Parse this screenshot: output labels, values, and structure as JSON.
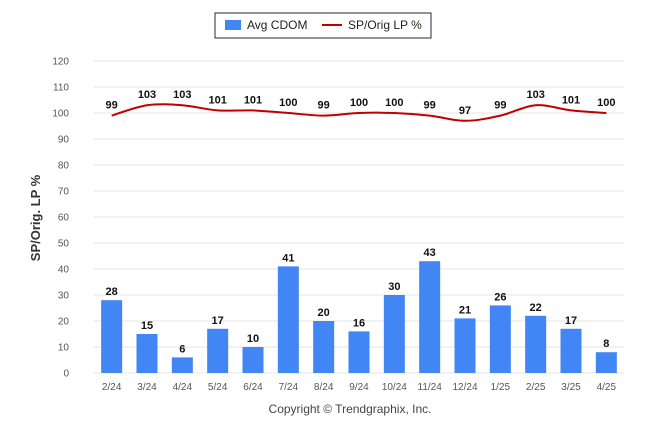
{
  "chart_data": {
    "type": "bar",
    "categories": [
      "2/24",
      "3/24",
      "4/24",
      "5/24",
      "6/24",
      "7/24",
      "8/24",
      "9/24",
      "10/24",
      "11/24",
      "12/24",
      "1/25",
      "2/25",
      "3/25",
      "4/25"
    ],
    "series": [
      {
        "name": "Avg CDOM",
        "type": "bar",
        "color": "#4285f4",
        "values": [
          28,
          15,
          6,
          17,
          10,
          41,
          20,
          16,
          30,
          43,
          21,
          26,
          22,
          17,
          8
        ]
      },
      {
        "name": "SP/Orig LP %",
        "type": "line",
        "color": "#c00000",
        "values": [
          99,
          103,
          103,
          101,
          101,
          100,
          99,
          100,
          100,
          99,
          97,
          99,
          103,
          101,
          100
        ]
      }
    ],
    "ylabel": "SP/Orig. LP %",
    "xlabel": "",
    "ylim": [
      0,
      120
    ],
    "yticks": [
      0,
      10,
      20,
      30,
      40,
      50,
      60,
      70,
      80,
      90,
      100,
      110,
      120
    ],
    "grid": true,
    "legend": "top-center"
  },
  "copyright": "Copyright © Trendgraphix, Inc."
}
